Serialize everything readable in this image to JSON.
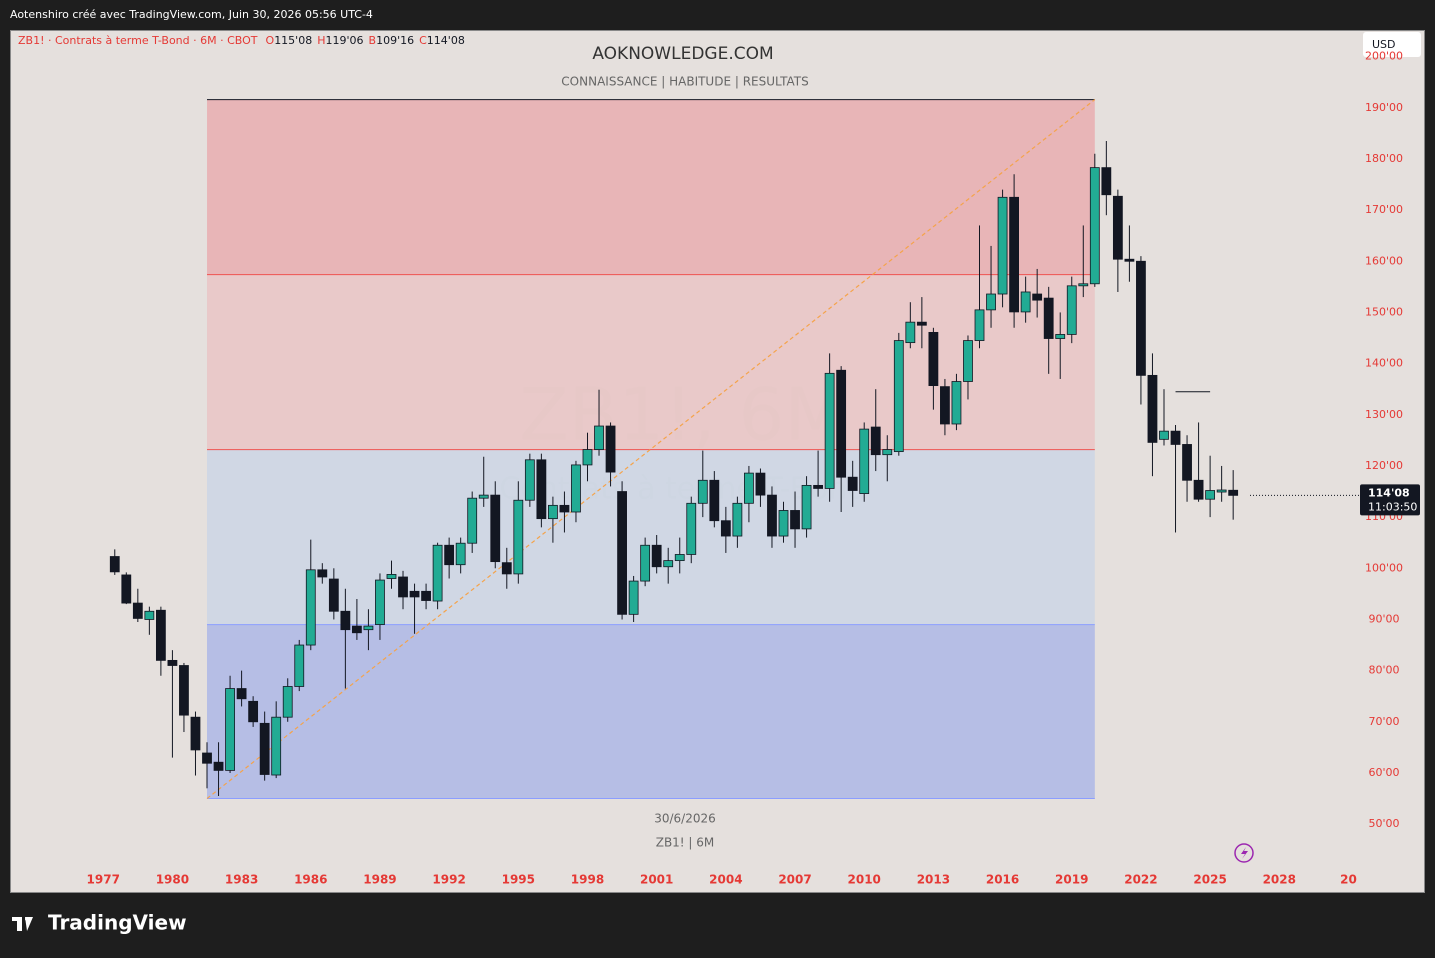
{
  "header": {
    "caption": "Aotenshiro créé avec TradingView.com, Juin 30, 2026 05:56 UTC-4",
    "brand": "TradingView"
  },
  "chart_data": {
    "type": "candlestick",
    "title": "AOKNOWLEDGE.COM",
    "subtitle": "CONNAISSANCE |  HABITUDE | RESULTATS",
    "watermark": "ZB1!, 6M",
    "watermark_sub": "Contrats à terme T-Bond",
    "footer_date": "30/6/2026",
    "footer_symbol": "ZB1! | 6M",
    "currency": "USD",
    "legend": {
      "name": "ZB1! · Contrats à terme T-Bond · 6M · CBOT",
      "fields": [
        {
          "key": "O",
          "label": "115'08"
        },
        {
          "key": "H",
          "label": "119'06"
        },
        {
          "key": "B",
          "label": "109'16"
        },
        {
          "key": "C",
          "label": "114'08"
        }
      ]
    },
    "last_price": {
      "value": 114.25,
      "label": "114'08",
      "countdown": "11:03:50"
    },
    "up_color": "#22ab94",
    "down_color": "#131722",
    "axis_label_color": "#e53935",
    "xlim": [
      1973,
      2031.5
    ],
    "ylim": [
      42.6,
      205
    ],
    "xticks": [
      1977,
      1980,
      1983,
      1986,
      1989,
      1992,
      1995,
      1998,
      2001,
      2004,
      2007,
      2010,
      2013,
      2016,
      2019,
      2022,
      2025,
      2028,
      {
        "value": 2031,
        "label": "20"
      }
    ],
    "yticks": [
      {
        "value": 50,
        "label": "50'00"
      },
      {
        "value": 60,
        "label": "60'00"
      },
      {
        "value": 70,
        "label": "70'00"
      },
      {
        "value": 80,
        "label": "80'00"
      },
      {
        "value": 90,
        "label": "90'00"
      },
      {
        "value": 100,
        "label": "100'00"
      },
      {
        "value": 110,
        "label": "110'00"
      },
      {
        "value": 120,
        "label": "120'00"
      },
      {
        "value": 130,
        "label": "130'00"
      },
      {
        "value": 140,
        "label": "140'00"
      },
      {
        "value": 150,
        "label": "150'00"
      },
      {
        "value": 160,
        "label": "160'00"
      },
      {
        "value": 170,
        "label": "170'00"
      },
      {
        "value": 180,
        "label": "180'00"
      },
      {
        "value": 190,
        "label": "190'00"
      },
      {
        "value": 200,
        "label": "200'00"
      }
    ],
    "zone_x": [
      1981.5,
      2020
    ],
    "zones": [
      {
        "top": 191.6,
        "bottom": 157.4,
        "color": "#e8b0b3",
        "edge": "#131722"
      },
      {
        "top": 157.4,
        "bottom": 123.2,
        "color": "#e9c6c7",
        "edge": "#ef5350"
      },
      {
        "top": 123.2,
        "bottom": 89.0,
        "color": "#cdd6e4",
        "edge": "#ef5350"
      },
      {
        "top": 89.0,
        "bottom": 55.0,
        "color": "#b0bae6",
        "edge": "#8c9eff"
      }
    ],
    "trendline": {
      "x": [
        1981.5,
        2020
      ],
      "y": [
        55.0,
        191.6
      ],
      "color": "#f5a34a"
    },
    "ray": {
      "y": 134.5,
      "x_from": 2023.5,
      "x_to": 2025
    },
    "x": [
      1977.5,
      1978,
      1978.5,
      1979,
      1979.5,
      1980,
      1980.5,
      1981,
      1981.5,
      1982,
      1982.5,
      1983,
      1983.5,
      1984,
      1984.5,
      1985,
      1985.5,
      1986,
      1986.5,
      1987,
      1987.5,
      1988,
      1988.5,
      1989,
      1989.5,
      1990,
      1990.5,
      1991,
      1991.5,
      1992,
      1992.5,
      1993,
      1993.5,
      1994,
      1994.5,
      1995,
      1995.5,
      1996,
      1996.5,
      1997,
      1997.5,
      1998,
      1998.5,
      1999,
      1999.5,
      2000,
      2000.5,
      2001,
      2001.5,
      2002,
      2002.5,
      2003,
      2003.5,
      2004,
      2004.5,
      2005,
      2005.5,
      2006,
      2006.5,
      2007,
      2007.5,
      2008,
      2008.5,
      2009,
      2009.5,
      2010,
      2010.5,
      2011,
      2011.5,
      2012,
      2012.5,
      2013,
      2013.5,
      2014,
      2014.5,
      2015,
      2015.5,
      2016,
      2016.5,
      2017,
      2017.5,
      2018,
      2018.5,
      2019,
      2019.5,
      2020,
      2020.5,
      2021,
      2021.5,
      2022,
      2022.5,
      2023,
      2023.5,
      2024,
      2024.5,
      2025,
      2025.5,
      2026
    ],
    "open": [
      102.3,
      98.7,
      93.2,
      90,
      91.8,
      82,
      81,
      70.9,
      63.9,
      62.1,
      60.5,
      76.5,
      74,
      69.7,
      59.6,
      70.9,
      76.9,
      85,
      99.7,
      97.9,
      91.6,
      88.7,
      88,
      89,
      98,
      98.3,
      95.5,
      95.5,
      93.6,
      104.5,
      100.7,
      104.9,
      113.7,
      114.3,
      101.1,
      98.9,
      113.3,
      121.2,
      109.7,
      112.3,
      111,
      120.2,
      123.2,
      127.8,
      115,
      91,
      97.5,
      104.5,
      100.3,
      101.5,
      102.7,
      112.7,
      117.2,
      109.3,
      106.3,
      112.7,
      118.6,
      114.3,
      106.3,
      111.3,
      107.7,
      116.2,
      115.6,
      138.7,
      117.8,
      114.6,
      127.6,
      122.2,
      122.8,
      144.1,
      148.1,
      146.1,
      135.5,
      128.2,
      136.5,
      144.5,
      150.5,
      153.6,
      172.5,
      150.1,
      153.6,
      152.8,
      144.9,
      145.7,
      155.2,
      155.6,
      178.3,
      172.7,
      160.4,
      160,
      137.7,
      125.2,
      126.8,
      124.2,
      117.2,
      113.5,
      114.9,
      115.25
    ],
    "high": [
      103.7,
      99.2,
      96,
      92.5,
      92.5,
      84,
      81.5,
      72,
      66,
      66,
      79,
      80,
      75,
      72,
      74,
      78.5,
      86,
      105.6,
      101,
      100,
      96,
      94,
      92,
      99,
      101.5,
      99.5,
      97,
      97,
      105,
      106,
      106,
      115,
      121.8,
      117,
      104,
      117,
      122.4,
      122.4,
      114,
      115,
      121,
      126.5,
      134.9,
      128.5,
      117,
      98.5,
      106,
      106.5,
      104,
      106,
      114,
      123,
      119,
      112,
      114,
      120,
      119.5,
      116,
      113,
      115,
      118,
      123,
      142,
      139.5,
      121,
      128.5,
      135,
      126,
      146,
      152,
      153,
      147,
      137,
      138,
      145.5,
      167,
      163,
      174,
      177,
      157,
      158.5,
      155,
      150,
      157,
      167,
      181,
      183.5,
      174,
      167,
      161,
      142,
      135,
      128,
      126,
      128.5,
      122,
      120,
      119.1875
    ],
    "low": [
      98.7,
      93,
      89.5,
      87,
      79,
      63,
      68,
      59.5,
      57,
      55.5,
      60,
      73,
      69,
      58.5,
      59,
      70,
      76,
      84,
      97,
      90,
      76.5,
      86,
      84,
      86,
      96,
      92,
      87.2,
      92,
      92,
      98,
      99,
      103,
      112,
      100,
      96,
      97,
      112,
      108,
      105,
      107,
      109,
      117,
      122,
      116,
      90,
      89.5,
      96.5,
      99,
      97,
      99,
      101,
      110,
      108,
      103,
      104,
      109,
      112,
      104,
      105,
      104,
      106,
      114,
      113,
      111,
      112,
      113,
      119,
      117,
      122,
      143,
      143,
      131,
      126,
      127,
      133,
      143,
      147,
      151,
      147,
      148,
      149,
      138,
      137,
      144,
      153,
      155,
      169,
      154,
      156,
      132,
      118,
      124,
      107,
      113,
      113,
      110,
      113,
      109.5
    ],
    "close": [
      99.3,
      93.2,
      90.2,
      91.6,
      82,
      81,
      71.3,
      64.5,
      61.9,
      60.5,
      76.5,
      74.5,
      70,
      59.7,
      70.9,
      76.9,
      85,
      99.7,
      98.3,
      91.6,
      88,
      87.4,
      88.7,
      97.7,
      98.8,
      94.4,
      94.4,
      93.7,
      104.5,
      100.7,
      104.9,
      113.7,
      114.3,
      101.3,
      98.9,
      113.3,
      121.2,
      109.7,
      112.3,
      111,
      120.2,
      123.2,
      127.8,
      118.8,
      91,
      97.5,
      104.5,
      100.3,
      101.5,
      102.7,
      112.7,
      117.2,
      109.3,
      106.3,
      112.7,
      118.6,
      114.3,
      106.3,
      111.3,
      107.7,
      116.2,
      115.6,
      138.1,
      117.8,
      115.2,
      127.2,
      122.2,
      123.2,
      144.5,
      148.1,
      147.5,
      135.7,
      128.2,
      136.5,
      144.5,
      150.5,
      153.6,
      172.5,
      150.1,
      154,
      152.4,
      144.9,
      145.7,
      155.2,
      155.6,
      178.3,
      173,
      160.4,
      160,
      137.7,
      124.6,
      126.8,
      124.2,
      117.2,
      113.5,
      115.2,
      115.3,
      114.25
    ]
  }
}
